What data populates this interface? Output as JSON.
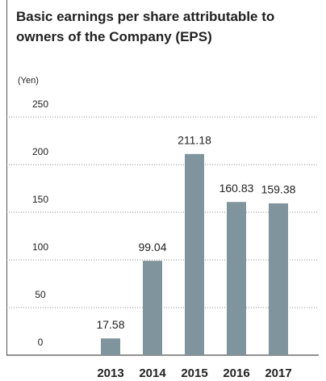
{
  "chart_data": {
    "type": "bar",
    "title": "Basic earnings per share attributable to owners of the Company (EPS)",
    "ylabel": "(Yen)",
    "categories": [
      "2013",
      "2014",
      "2015",
      "2016",
      "2017"
    ],
    "values": [
      17.58,
      99.04,
      211.18,
      160.83,
      159.38
    ],
    "color": "#7f949c",
    "ylim": [
      0,
      250
    ],
    "yticks": [
      0,
      50,
      100,
      150,
      200,
      250
    ],
    "grid": true
  }
}
